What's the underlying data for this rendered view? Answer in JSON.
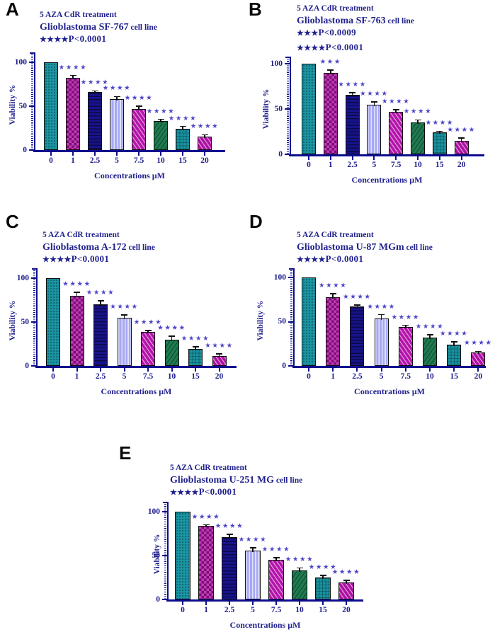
{
  "page": {
    "background": "#ffffff"
  },
  "colors": {
    "title_text": "#22228e",
    "axis": "#0d0d8e",
    "tick_text": "#1c1c8c",
    "significance_stars": "#4b44c8",
    "panel_letter": "#0a0a0a",
    "error_bar": "#101010"
  },
  "bar_styles": [
    {
      "name": "teal-dots",
      "color": "#1b96a4",
      "pattern": "dots"
    },
    {
      "name": "magenta-checker",
      "color": "#b112a6",
      "pattern": "checker"
    },
    {
      "name": "navy-hlines",
      "color": "#18138b",
      "pattern": "hlines"
    },
    {
      "name": "periwinkle-vlines",
      "color": "#a6a8f4",
      "pattern": "vlines"
    },
    {
      "name": "magenta-diagonal",
      "color": "#b414aa",
      "pattern": "diag-light"
    },
    {
      "name": "green-diagonal",
      "color": "#1f7b50",
      "pattern": "diag-dark"
    },
    {
      "name": "teal-grid",
      "color": "#1792a0",
      "pattern": "grid"
    },
    {
      "name": "magenta-diagonal2",
      "color": "#ad10a2",
      "pattern": "diag-light"
    }
  ],
  "chart_data": [
    {
      "type": "bar",
      "panel_letter": "A",
      "title_line1": "5 AZA CdR treatment",
      "cell_line": "Glioblastoma SF-767",
      "cell_line_suffix": "cell line",
      "p_value_lines": [
        "****P<0.0001"
      ],
      "xlabel": "Concentrations µM",
      "ylabel": "Viability %",
      "categories": [
        "0",
        "1",
        "2.5",
        "5",
        "7.5",
        "10",
        "15",
        "20"
      ],
      "values": [
        100,
        82,
        66,
        58,
        47,
        33,
        24,
        15
      ],
      "errors": [
        0,
        3,
        1.5,
        3,
        3,
        2,
        3,
        2.5
      ],
      "significance": [
        "",
        "****",
        "****",
        "****",
        "****",
        "****",
        "****",
        "****"
      ],
      "yticks": [
        0,
        50,
        100
      ],
      "ylim": [
        0,
        110
      ],
      "grid": false
    },
    {
      "type": "bar",
      "panel_letter": "B",
      "title_line1": "5 AZA CdR treatment",
      "cell_line": "Glioblastoma SF-763",
      "cell_line_suffix": "cell line",
      "p_value_lines": [
        "***P<0.0009",
        "****P<0.0001"
      ],
      "xlabel": "Concentrations µM",
      "ylabel": "Viability %",
      "categories": [
        "0",
        "1",
        "2.5",
        "5",
        "7.5",
        "10",
        "15",
        "20"
      ],
      "values": [
        100,
        90,
        66,
        55,
        47,
        35,
        24,
        15
      ],
      "errors": [
        0,
        3,
        2,
        3,
        2,
        3,
        1.5,
        3
      ],
      "significance": [
        "",
        "***",
        "****",
        "****",
        "****",
        "****",
        "****",
        "****"
      ],
      "yticks": [
        0,
        50,
        100
      ],
      "ylim": [
        0,
        110
      ],
      "grid": false
    },
    {
      "type": "bar",
      "panel_letter": "C",
      "title_line1": "5 AZA CdR treatment",
      "cell_line": "Glioblastoma A-172",
      "cell_line_suffix": " cell line",
      "p_value_lines": [
        "****P<0.0001"
      ],
      "xlabel": "Concentrations µM",
      "ylabel": "Viability %",
      "categories": [
        "0",
        "1",
        "2.5",
        "5",
        "7.5",
        "10",
        "15",
        "20"
      ],
      "values": [
        100,
        80,
        70,
        55,
        39,
        30,
        19,
        11
      ],
      "errors": [
        0,
        4,
        4,
        3,
        1.5,
        4,
        3,
        3
      ],
      "significance": [
        "",
        "****",
        "****",
        "****",
        "****",
        "****",
        "****",
        "****"
      ],
      "yticks": [
        0,
        50,
        100
      ],
      "ylim": [
        0,
        110
      ],
      "grid": false
    },
    {
      "type": "bar",
      "panel_letter": "D",
      "title_line1": "5 AZA CdR treatment",
      "cell_line": "Glioblastoma U-87 MGm",
      "cell_line_suffix": "cell line",
      "p_value_lines": [
        "****P<0.0001"
      ],
      "xlabel": "Concentrations µM",
      "ylabel": "Viability %",
      "categories": [
        "0",
        "1",
        "2.5",
        "5",
        "7.5",
        "10",
        "15",
        "20"
      ],
      "values": [
        100,
        78,
        67,
        54,
        44,
        32,
        24,
        15
      ],
      "errors": [
        0,
        3.5,
        2,
        4,
        2,
        3,
        3,
        1.5
      ],
      "significance": [
        "",
        "****",
        "****",
        "****",
        "****",
        "****",
        "****",
        "****"
      ],
      "yticks": [
        0,
        50,
        100
      ],
      "ylim": [
        0,
        110
      ],
      "grid": false
    },
    {
      "type": "bar",
      "panel_letter": "E",
      "title_line1": "5 AZA CdR treatment",
      "cell_line": "Glioblastoma U-251 MG",
      "cell_line_suffix": " cell line",
      "p_value_lines": [
        "****P<0.0001"
      ],
      "xlabel": "Concentrations µM",
      "ylabel": "Viability %",
      "categories": [
        "0",
        "1",
        "2.5",
        "5",
        "7.5",
        "10",
        "15",
        "20"
      ],
      "values": [
        100,
        84,
        71,
        56,
        45,
        33,
        25,
        19
      ],
      "errors": [
        0,
        1,
        3,
        3,
        2.5,
        3,
        2.5,
        3
      ],
      "significance": [
        "",
        "****",
        "****",
        "****",
        "****",
        "****",
        "****",
        "****"
      ],
      "yticks": [
        0,
        50,
        100
      ],
      "ylim": [
        0,
        110
      ],
      "grid": false
    }
  ]
}
